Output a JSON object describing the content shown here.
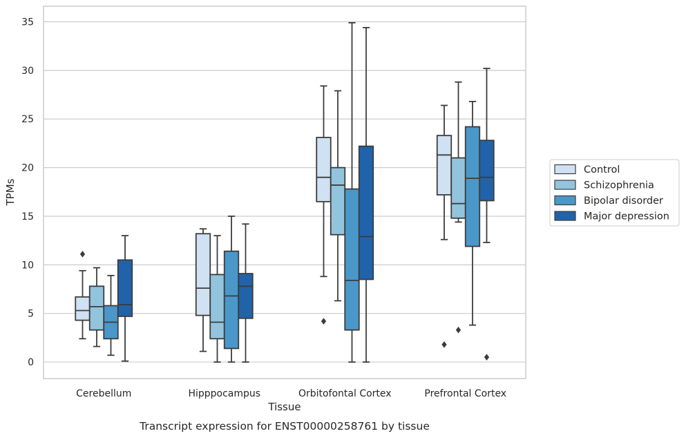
{
  "caption": "Transcript expression for ENST00000258761 by tissue",
  "chart_data": {
    "type": "boxplot",
    "xlabel": "Tissue",
    "ylabel": "TPMs",
    "ylim": [
      -1.7,
      36.6
    ],
    "yticks": [
      0,
      5,
      10,
      15,
      20,
      25,
      30,
      35
    ],
    "grid": true,
    "legend_position": "right",
    "categories": [
      "Cerebellum",
      "Hipppocampus",
      "Orbitofontal Cortex",
      "Prefrontal Cortex"
    ],
    "series": [
      {
        "name": "Control",
        "color": "#cfe1f2",
        "boxes": [
          {
            "whislo": 2.4,
            "q1": 4.3,
            "med": 5.3,
            "q3": 6.7,
            "whishi": 9.4,
            "fliers": [
              11.1
            ]
          },
          {
            "whislo": 1.1,
            "q1": 4.8,
            "med": 7.6,
            "q3": 13.2,
            "whishi": 13.7,
            "fliers": []
          },
          {
            "whislo": 8.8,
            "q1": 16.5,
            "med": 19.0,
            "q3": 23.1,
            "whishi": 28.4,
            "fliers": [
              4.2
            ]
          },
          {
            "whislo": 12.6,
            "q1": 17.2,
            "med": 21.3,
            "q3": 23.3,
            "whishi": 26.4,
            "fliers": [
              1.8
            ]
          }
        ]
      },
      {
        "name": "Schizophrenia",
        "color": "#93c4de",
        "boxes": [
          {
            "whislo": 1.6,
            "q1": 3.3,
            "med": 5.7,
            "q3": 7.8,
            "whishi": 9.7,
            "fliers": []
          },
          {
            "whislo": 0.0,
            "q1": 2.4,
            "med": 4.1,
            "q3": 9.0,
            "whishi": 13.0,
            "fliers": []
          },
          {
            "whislo": 6.3,
            "q1": 13.1,
            "med": 18.2,
            "q3": 20.0,
            "whishi": 27.9,
            "fliers": []
          },
          {
            "whislo": 14.4,
            "q1": 14.8,
            "med": 16.3,
            "q3": 21.0,
            "whishi": 28.8,
            "fliers": [
              3.3
            ]
          }
        ]
      },
      {
        "name": "Bipolar disorder",
        "color": "#4a98c9",
        "boxes": [
          {
            "whislo": 0.7,
            "q1": 2.4,
            "med": 4.1,
            "q3": 5.8,
            "whishi": 8.9,
            "fliers": []
          },
          {
            "whislo": 0.0,
            "q1": 1.4,
            "med": 6.8,
            "q3": 11.4,
            "whishi": 15.0,
            "fliers": []
          },
          {
            "whislo": 0.0,
            "q1": 3.3,
            "med": 8.4,
            "q3": 17.8,
            "whishi": 34.9,
            "fliers": []
          },
          {
            "whislo": 3.8,
            "q1": 11.9,
            "med": 18.9,
            "q3": 24.2,
            "whishi": 26.8,
            "fliers": []
          }
        ]
      },
      {
        "name": "Major depression",
        "color": "#2163aa",
        "boxes": [
          {
            "whislo": 0.1,
            "q1": 4.7,
            "med": 5.9,
            "q3": 10.5,
            "whishi": 13.0,
            "fliers": []
          },
          {
            "whislo": 0.0,
            "q1": 4.5,
            "med": 7.8,
            "q3": 9.1,
            "whishi": 14.2,
            "fliers": []
          },
          {
            "whislo": 0.0,
            "q1": 8.5,
            "med": 12.9,
            "q3": 22.2,
            "whishi": 34.4,
            "fliers": []
          },
          {
            "whislo": 12.3,
            "q1": 16.6,
            "med": 19.0,
            "q3": 22.8,
            "whishi": 30.2,
            "fliers": [
              0.5
            ]
          }
        ]
      }
    ]
  }
}
